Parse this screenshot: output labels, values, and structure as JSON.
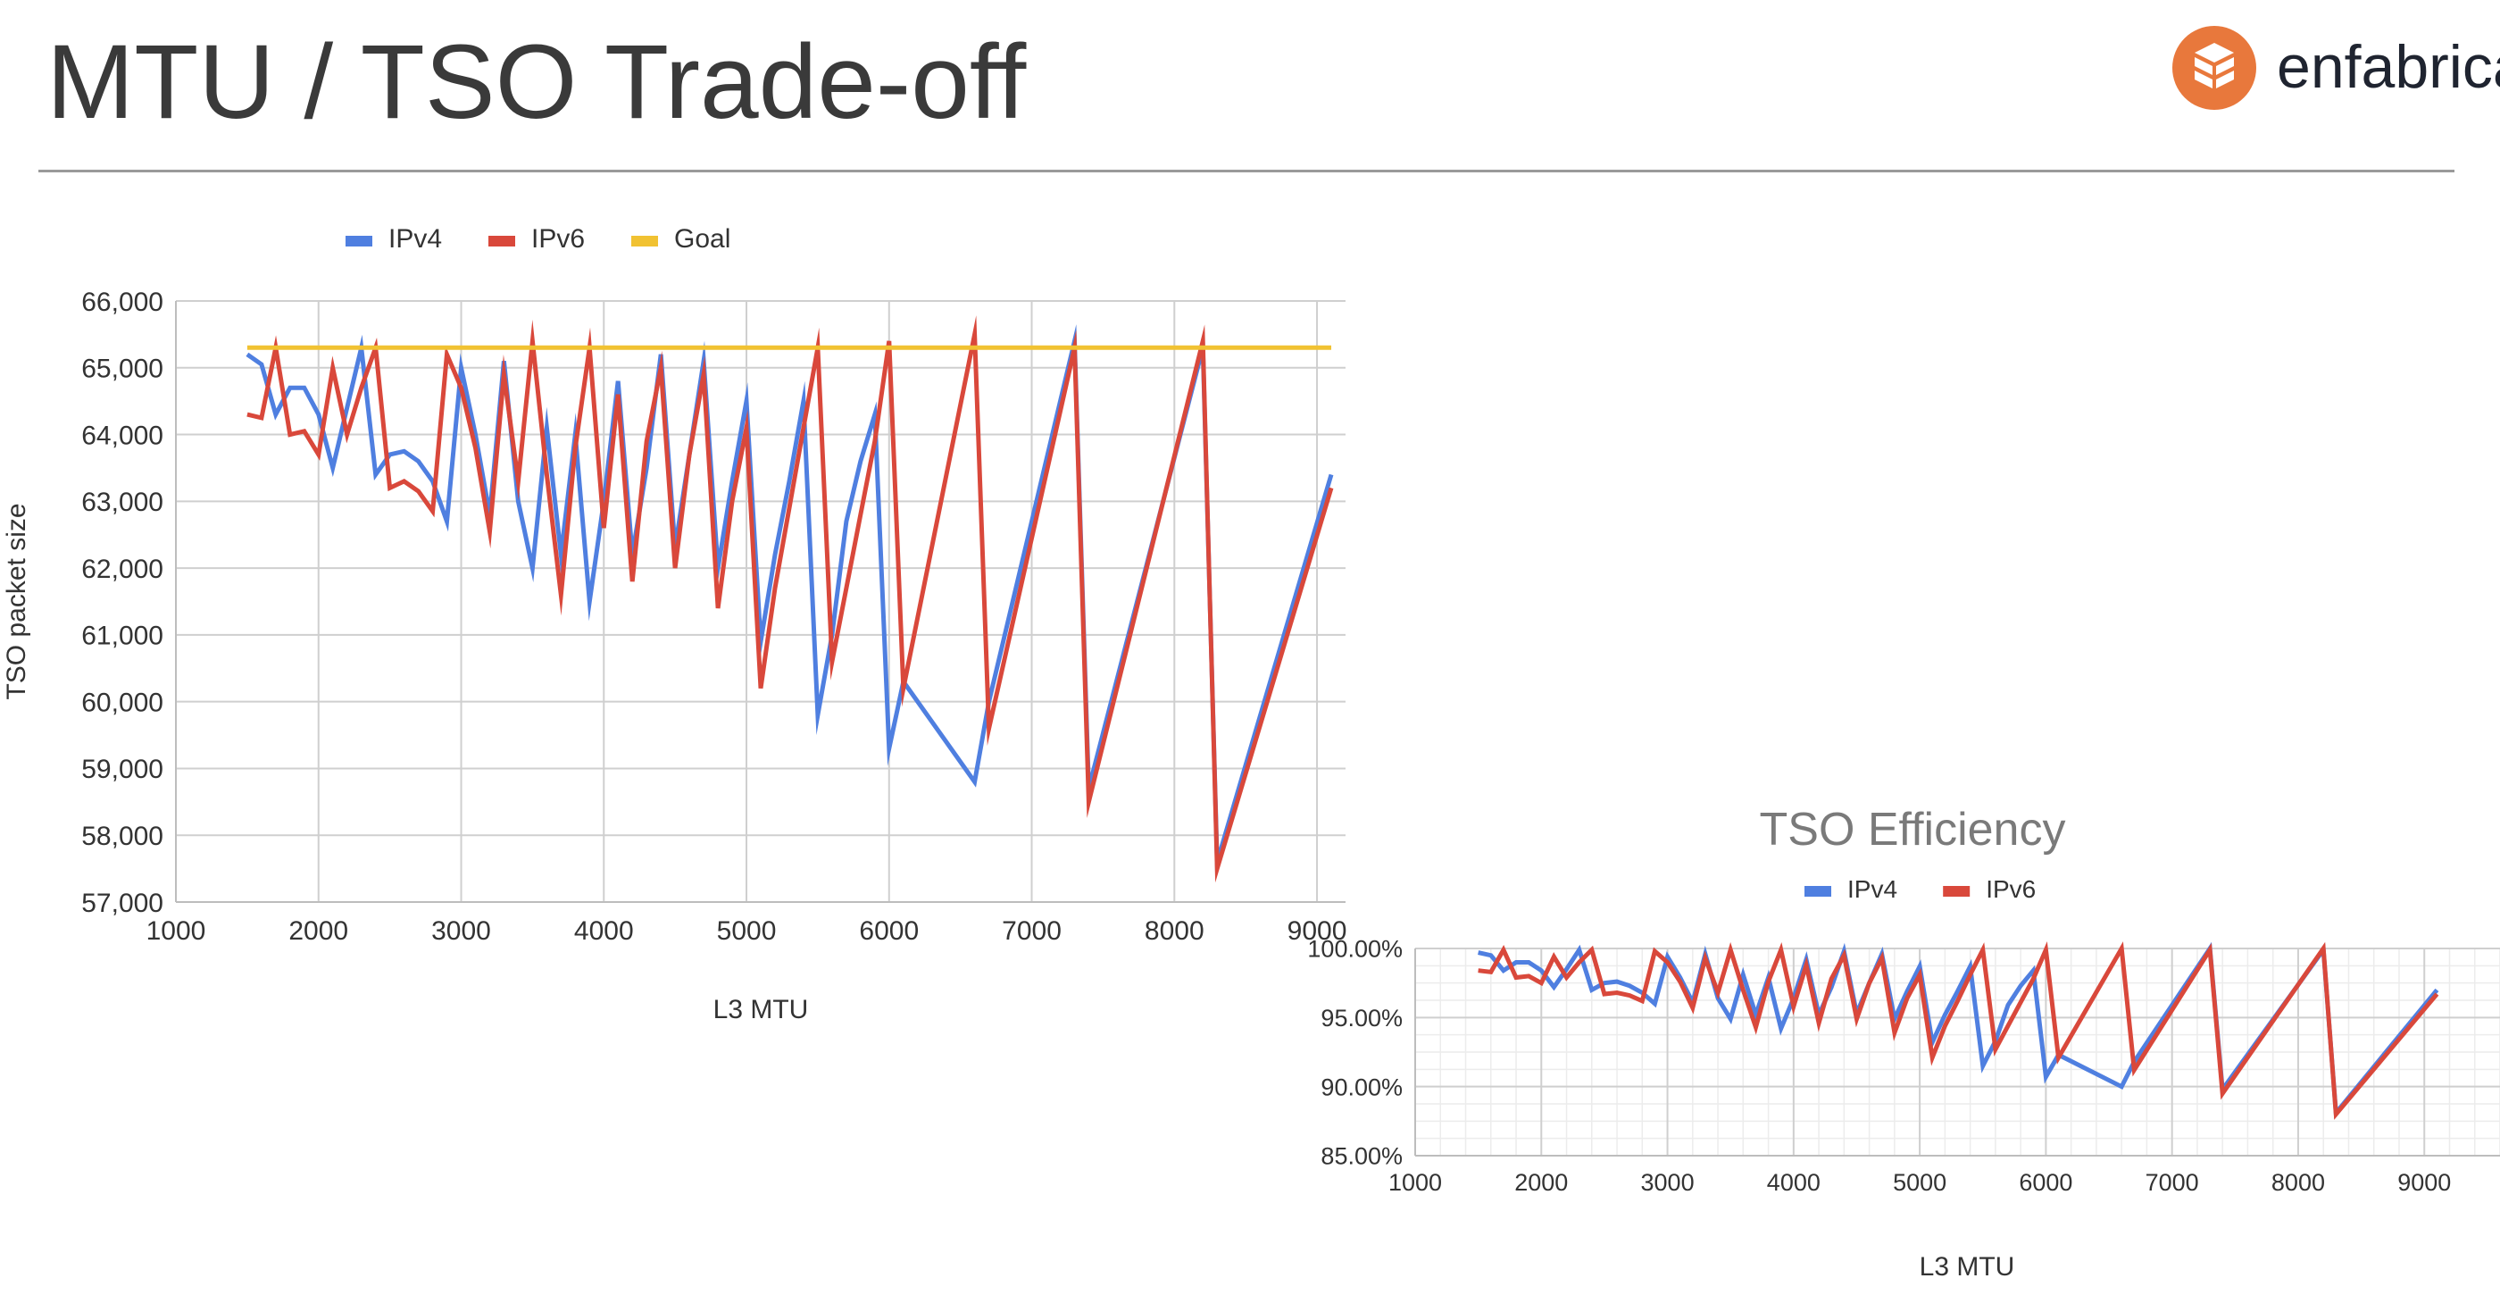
{
  "slide": {
    "title": "MTU / TSO Trade-off",
    "brand_name": "enfabrica",
    "brand_color": "#e8783c",
    "logo_icon": "stacked-cubes-logo-icon"
  },
  "chart_data": [
    {
      "type": "line",
      "title": "",
      "xlabel": "L3 MTU",
      "ylabel": "TSO packet size",
      "xlim": [
        1000,
        9200
      ],
      "ylim": [
        57000,
        66000
      ],
      "x_ticks": [
        "1000",
        "2000",
        "3000",
        "4000",
        "5000",
        "6000",
        "7000",
        "8000",
        "9000"
      ],
      "y_ticks": [
        "57,000",
        "58,000",
        "59,000",
        "60,000",
        "61,000",
        "62,000",
        "63,000",
        "64,000",
        "65,000",
        "66,000"
      ],
      "grid": true,
      "legend": "top",
      "series": [
        {
          "name": "IPv4",
          "color": "#4f7fe0",
          "x": [
            1500,
            1600,
            1700,
            1800,
            1900,
            2000,
            2100,
            2200,
            2300,
            2400,
            2500,
            2600,
            2700,
            2800,
            2900,
            3000,
            3100,
            3200,
            3300,
            3400,
            3500,
            3600,
            3700,
            3800,
            3900,
            4000,
            4100,
            4200,
            4300,
            4400,
            4500,
            4600,
            4700,
            4800,
            4900,
            5000,
            5100,
            5200,
            5300,
            5400,
            5500,
            5600,
            5700,
            5800,
            5900,
            6000,
            6100,
            6600,
            6700,
            7300,
            7400,
            8200,
            8300,
            9100
          ],
          "y": [
            65200,
            65050,
            64300,
            64700,
            64700,
            64300,
            63500,
            64400,
            65300,
            63400,
            63700,
            63750,
            63600,
            63300,
            62700,
            65000,
            64000,
            62800,
            65100,
            63000,
            62000,
            64100,
            62200,
            64000,
            61500,
            63000,
            64800,
            62200,
            63500,
            65200,
            62300,
            63700,
            65100,
            62000,
            63300,
            64500,
            60900,
            62200,
            63300,
            64500,
            59800,
            61000,
            62700,
            63600,
            64300,
            59300,
            60300,
            58800,
            60000,
            65400,
            58700,
            65300,
            57600,
            63400
          ]
        },
        {
          "name": "IPv6",
          "color": "#d9483b",
          "x": [
            1500,
            1600,
            1700,
            1800,
            1900,
            2000,
            2100,
            2200,
            2300,
            2400,
            2500,
            2600,
            2700,
            2800,
            2900,
            3000,
            3100,
            3200,
            3300,
            3400,
            3500,
            3600,
            3700,
            3800,
            3900,
            4000,
            4100,
            4200,
            4300,
            4400,
            4500,
            4600,
            4700,
            4800,
            4900,
            5000,
            5100,
            5200,
            5300,
            5400,
            5500,
            5600,
            5700,
            5800,
            5900,
            6000,
            6100,
            6600,
            6700,
            7300,
            7400,
            8200,
            8300,
            9100
          ],
          "y": [
            64300,
            64250,
            65300,
            64000,
            64050,
            63700,
            65000,
            64000,
            64700,
            65300,
            63200,
            63300,
            63150,
            62850,
            65200,
            64700,
            63800,
            62550,
            64900,
            63300,
            65400,
            63400,
            61600,
            63800,
            65300,
            62600,
            64600,
            61800,
            63900,
            65000,
            62000,
            63700,
            64900,
            61400,
            63000,
            64100,
            60200,
            61700,
            62900,
            64100,
            65300,
            60600,
            61700,
            62800,
            63900,
            65400,
            60200,
            65500,
            59600,
            65300,
            58500,
            65400,
            57500,
            63200
          ]
        },
        {
          "name": "Goal",
          "color": "#f1c232",
          "x": [
            1500,
            9100
          ],
          "y": [
            65300,
            65300
          ]
        }
      ]
    },
    {
      "type": "line",
      "title": "TSO Efficiency",
      "xlabel": "L3 MTU",
      "ylabel": "",
      "xlim": [
        1000,
        9600
      ],
      "ylim": [
        85,
        100
      ],
      "x_ticks": [
        "1000",
        "2000",
        "3000",
        "4000",
        "5000",
        "6000",
        "7000",
        "8000",
        "9000"
      ],
      "y_ticks": [
        "85.00%",
        "90.00%",
        "95.00%",
        "100.00%"
      ],
      "grid": true,
      "legend": "top",
      "series": [
        {
          "name": "IPv4",
          "color": "#4f7fe0",
          "x": [
            1500,
            1600,
            1700,
            1800,
            1900,
            2000,
            2100,
            2200,
            2300,
            2400,
            2500,
            2600,
            2700,
            2800,
            2900,
            3000,
            3100,
            3200,
            3300,
            3400,
            3500,
            3600,
            3700,
            3800,
            3900,
            4000,
            4100,
            4200,
            4300,
            4400,
            4500,
            4600,
            4700,
            4800,
            4900,
            5000,
            5100,
            5200,
            5300,
            5400,
            5500,
            5600,
            5700,
            5800,
            5900,
            6000,
            6100,
            6600,
            6700,
            7300,
            7400,
            8200,
            8300,
            9100
          ],
          "y": [
            99.7,
            99.5,
            98.4,
            99.0,
            99.0,
            98.4,
            97.2,
            98.5,
            99.9,
            97.0,
            97.5,
            97.6,
            97.3,
            96.8,
            96.0,
            99.4,
            97.9,
            96.1,
            99.6,
            96.4,
            94.9,
            98.1,
            95.2,
            97.9,
            94.2,
            96.4,
            99.2,
            95.2,
            97.2,
            99.8,
            95.3,
            97.5,
            99.6,
            94.9,
            96.9,
            98.7,
            93.2,
            95.2,
            96.9,
            98.7,
            91.5,
            93.3,
            95.9,
            97.3,
            98.4,
            90.7,
            92.3,
            90.0,
            91.8,
            100.0,
            89.8,
            99.9,
            88.1,
            97.0
          ]
        },
        {
          "name": "IPv6",
          "color": "#d9483b",
          "x": [
            1500,
            1600,
            1700,
            1800,
            1900,
            2000,
            2100,
            2200,
            2300,
            2400,
            2500,
            2600,
            2700,
            2800,
            2900,
            3000,
            3100,
            3200,
            3300,
            3400,
            3500,
            3600,
            3700,
            3800,
            3900,
            4000,
            4100,
            4200,
            4300,
            4400,
            4500,
            4600,
            4700,
            4800,
            4900,
            5000,
            5100,
            5200,
            5300,
            5400,
            5500,
            5600,
            5700,
            5800,
            5900,
            6000,
            6100,
            6600,
            6700,
            7300,
            7400,
            8200,
            8300,
            9100
          ],
          "y": [
            98.4,
            98.3,
            99.9,
            97.9,
            98.0,
            97.5,
            99.4,
            97.9,
            99.0,
            99.9,
            96.7,
            96.8,
            96.6,
            96.2,
            99.8,
            99.0,
            97.6,
            95.7,
            99.3,
            96.8,
            99.9,
            97.0,
            94.3,
            97.6,
            99.9,
            95.8,
            98.8,
            94.6,
            97.8,
            99.5,
            94.9,
            97.5,
            99.3,
            93.9,
            96.4,
            98.1,
            92.1,
            94.4,
            96.2,
            98.1,
            99.9,
            92.7,
            94.4,
            96.1,
            97.8,
            99.9,
            92.1,
            100.0,
            91.2,
            99.9,
            89.5,
            100.0,
            88.0,
            96.7
          ]
        }
      ]
    }
  ]
}
